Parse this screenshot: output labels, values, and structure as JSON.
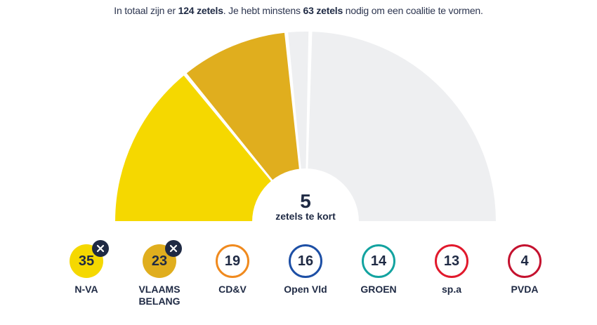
{
  "intro": {
    "prefix": "In totaal zijn er ",
    "total_seats": "124 zetels",
    "middle": ". Je hebt minstens ",
    "needed_seats": "63 zetels",
    "suffix": " nodig om een coalitie te vormen."
  },
  "result": {
    "count": "5",
    "label": "zetels te kort"
  },
  "chart_data": {
    "type": "pie",
    "title": "",
    "total": 124,
    "majority": 63,
    "start": "left",
    "slices": [
      {
        "name": "N-VA",
        "value": 35,
        "color": "#f5d800"
      },
      {
        "name": "VLAAMS BELANG",
        "value": 23,
        "color": "#e0ae1e"
      },
      {
        "name": "",
        "value": 5,
        "color": "#eeeff1"
      },
      {
        "name": "",
        "value": 61,
        "color": "#eeeff1"
      }
    ]
  },
  "parties": [
    {
      "name": "N-VA",
      "seats": "35",
      "selected": true,
      "color": "#f5d800",
      "text_color": "#1f2a44"
    },
    {
      "name": "VLAAMS BELANG",
      "seats": "23",
      "selected": true,
      "color": "#e0ae1e",
      "text_color": "#1f2a44"
    },
    {
      "name": "CD&V",
      "seats": "19",
      "selected": false,
      "color": "#f08a1e",
      "text_color": "#1f2a44"
    },
    {
      "name": "Open Vld",
      "seats": "16",
      "selected": false,
      "color": "#1d4fa5",
      "text_color": "#1f2a44"
    },
    {
      "name": "GROEN",
      "seats": "14",
      "selected": false,
      "color": "#13a3a0",
      "text_color": "#1f2a44"
    },
    {
      "name": "sp.a",
      "seats": "13",
      "selected": false,
      "color": "#e1192c",
      "text_color": "#1f2a44"
    },
    {
      "name": "PVDA",
      "seats": "4",
      "selected": false,
      "color": "#c4122f",
      "text_color": "#1f2a44"
    }
  ],
  "icons": {
    "remove": "close-icon"
  }
}
